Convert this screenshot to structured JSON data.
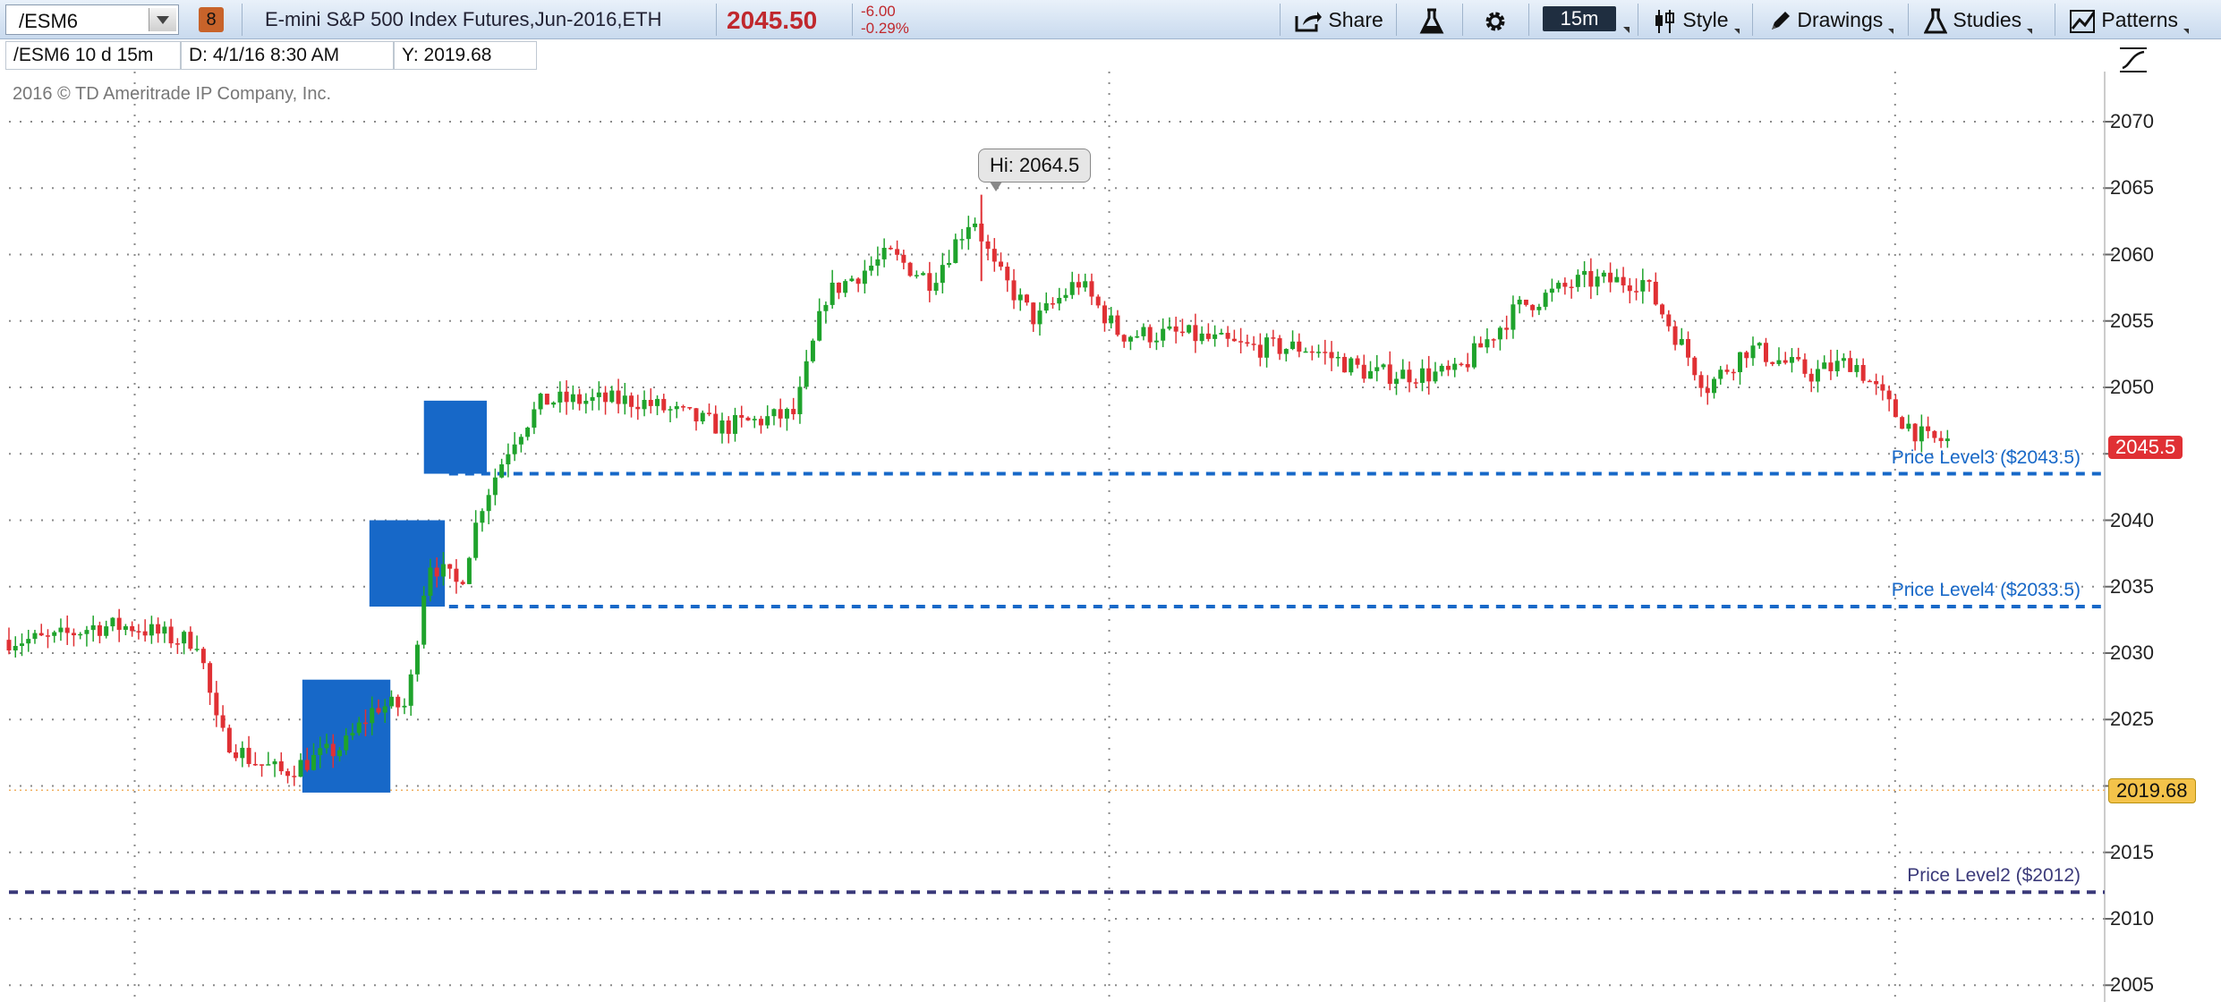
{
  "toolbar": {
    "symbol": "/ESM6",
    "link_number": "8",
    "description": "E-mini S&P 500 Index Futures,Jun-2016,ETH",
    "last_price": "2045.50",
    "change": "-6.00",
    "change_pct": "-0.29%",
    "share_label": "Share",
    "timeframe": "15m",
    "style_label": "Style",
    "drawings_label": "Drawings",
    "studies_label": "Studies",
    "patterns_label": "Patterns",
    "icons": [
      "share-icon",
      "flask-icon",
      "gear-icon",
      "style-icon",
      "pencil-icon",
      "studies-flask-icon",
      "patterns-icon"
    ]
  },
  "infobar": {
    "period": "/ESM6 10 d 15m",
    "date": "D:  4/1/16 8:30 AM",
    "y": "Y:  2019.68"
  },
  "copyright": "2016 © TD Ameritrade IP Company, Inc.",
  "chart_data": {
    "type": "candlestick",
    "ylim": [
      2004,
      2073
    ],
    "y_ticks": [
      "2070",
      "2065",
      "2060",
      "2055",
      "2050",
      "2045",
      "2040",
      "2035",
      "2030",
      "2025",
      "2020",
      "2015",
      "2010",
      "2005"
    ],
    "close_path": [
      [
        0,
        2031
      ],
      [
        0.02,
        2031
      ],
      [
        0.04,
        2032
      ],
      [
        0.06,
        2032
      ],
      [
        0.08,
        2031
      ],
      [
        0.09,
        2031
      ],
      [
        0.1,
        2024
      ],
      [
        0.115,
        2022
      ],
      [
        0.13,
        2021
      ],
      [
        0.145,
        2022
      ],
      [
        0.16,
        2023
      ],
      [
        0.175,
        2026
      ],
      [
        0.19,
        2026
      ],
      [
        0.2,
        2037
      ],
      [
        0.215,
        2035
      ],
      [
        0.225,
        2041
      ],
      [
        0.24,
        2046
      ],
      [
        0.255,
        2049
      ],
      [
        0.27,
        2049
      ],
      [
        0.3,
        2049
      ],
      [
        0.34,
        2047
      ],
      [
        0.375,
        2048
      ],
      [
        0.39,
        2057
      ],
      [
        0.42,
        2060
      ],
      [
        0.44,
        2058
      ],
      [
        0.46,
        2063
      ],
      [
        0.47,
        2059
      ],
      [
        0.49,
        2055
      ],
      [
        0.51,
        2058
      ],
      [
        0.53,
        2054
      ],
      [
        0.56,
        2054
      ],
      [
        0.59,
        2053
      ],
      [
        0.62,
        2053
      ],
      [
        0.65,
        2051
      ],
      [
        0.69,
        2051
      ],
      [
        0.72,
        2056
      ],
      [
        0.75,
        2058
      ],
      [
        0.78,
        2058
      ],
      [
        0.81,
        2050
      ],
      [
        0.83,
        2053
      ],
      [
        0.86,
        2051
      ],
      [
        0.88,
        2052
      ],
      [
        0.9,
        2048
      ],
      [
        0.915,
        2046
      ],
      [
        0.925,
        2046
      ]
    ],
    "boxes": [
      {
        "y_low": 2019.5,
        "y_high": 2028,
        "x0": 0.14,
        "x1": 0.182
      },
      {
        "y_low": 2033.5,
        "y_high": 2040,
        "x0": 0.172,
        "x1": 0.208
      },
      {
        "y_low": 2043.5,
        "y_high": 2049,
        "x0": 0.198,
        "x1": 0.228
      }
    ],
    "levels": [
      {
        "label": "Price Level3 ($2043.5)",
        "value": 2043.5,
        "color": "#1768c8"
      },
      {
        "label": "Price Level4 ($2033.5)",
        "value": 2033.5,
        "color": "#1768c8"
      },
      {
        "label": "Price Level2 ($2012)",
        "value": 2012,
        "color": "#3b3a7a"
      }
    ],
    "cursor_y": 2019.68,
    "cursor_y_label": "2019.68",
    "last_tag": "2045.5",
    "high_label": "Hi: 2064.5",
    "high_value": 2064.5,
    "grid": true,
    "colors": {
      "up": "#1fa32c",
      "down": "#e03034",
      "box": "#1768c8",
      "last_tag_bg": "#e03034",
      "cursor_tag_bg": "#f4c34a"
    }
  }
}
